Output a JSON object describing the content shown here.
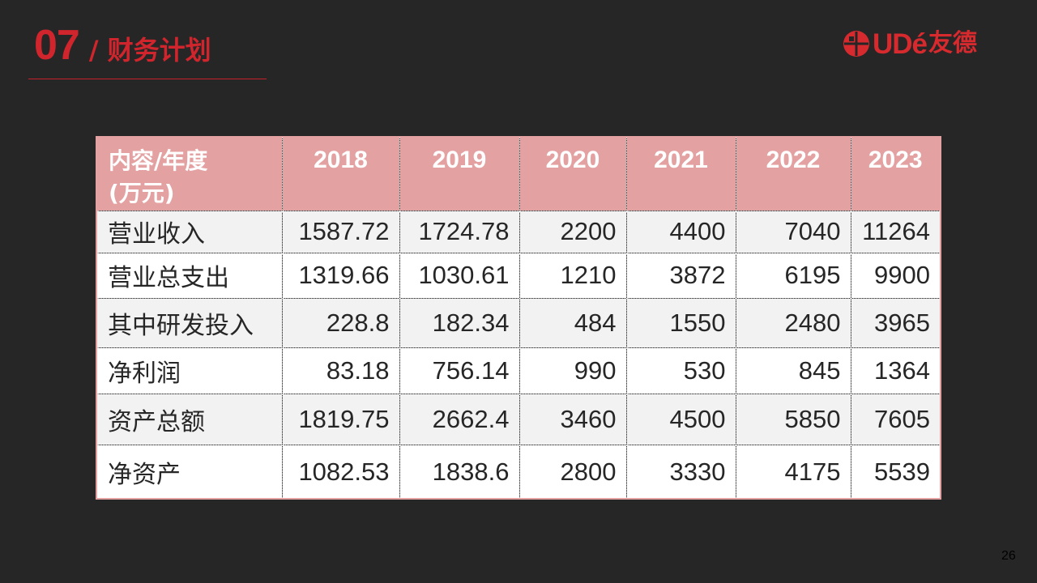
{
  "header": {
    "section_number": "07",
    "section_title": "/ 财务计划"
  },
  "logo": {
    "latin_text": "UDé",
    "chinese_text": "友德",
    "brand_color": "#d62a2f"
  },
  "table": {
    "header_label_line1": "内容/年度",
    "header_label_line2": "(万元)",
    "years": [
      "2018",
      "2019",
      "2020",
      "2021",
      "2022",
      "2023"
    ],
    "rows": [
      {
        "label": "营业收入",
        "values": [
          "1587.72",
          "1724.78",
          "2200",
          "4400",
          "7040",
          "11264"
        ]
      },
      {
        "label": "营业总支出",
        "values": [
          "1319.66",
          "1030.61",
          "1210",
          "3872",
          "6195",
          "9900"
        ]
      },
      {
        "label": "其中研发投入",
        "values": [
          "228.8",
          "182.34",
          "484",
          "1550",
          "2480",
          "3965"
        ]
      },
      {
        "label": "净利润",
        "values": [
          "83.18",
          "756.14",
          "990",
          "530",
          "845",
          "1364"
        ]
      },
      {
        "label": "资产总额",
        "values": [
          "1819.75",
          "2662.4",
          "3460",
          "4500",
          "5850",
          "7605"
        ]
      },
      {
        "label": "净资产",
        "values": [
          "1082.53",
          "1838.6",
          "2800",
          "3330",
          "4175",
          "5539"
        ]
      }
    ],
    "header_color": "#e4a1a2"
  },
  "footer": {
    "page_number": "26"
  },
  "colors": {
    "background": "#262626",
    "accent": "#d0252d"
  }
}
